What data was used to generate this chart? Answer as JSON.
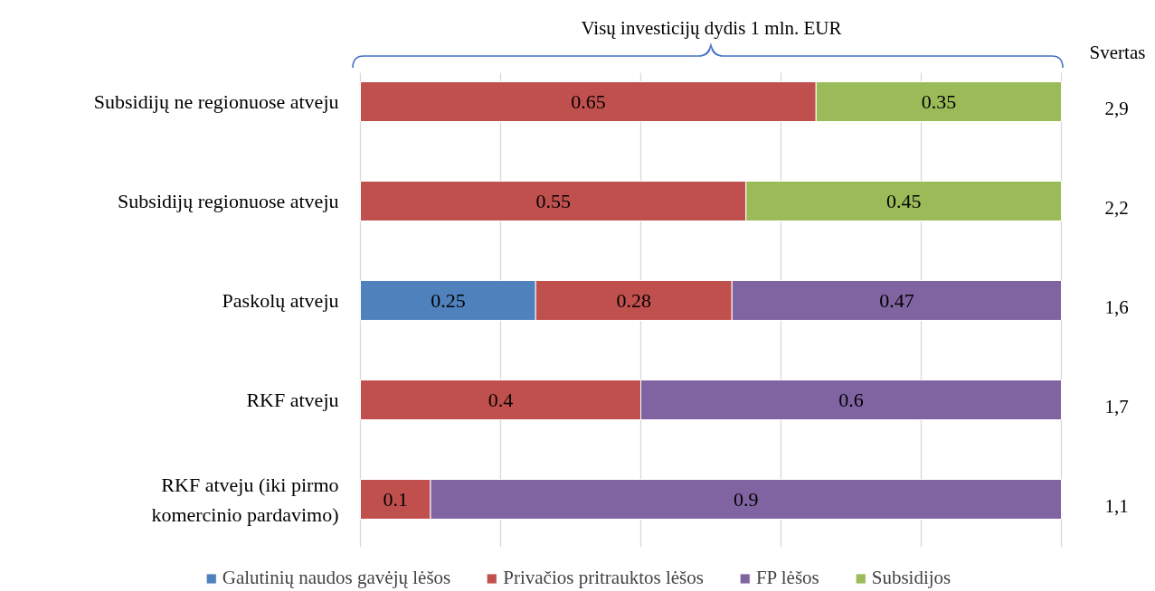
{
  "chart_data": {
    "type": "bar",
    "orientation": "horizontal",
    "stacked": true,
    "categories": [
      "Subsidijų ne regionuose atveju",
      "Subsidijų regionuose atveju",
      "Paskolų atveju",
      "RKF atveju",
      "RKF atveju (iki pirmo komercinio pardavimo)"
    ],
    "series": [
      {
        "name": "Galutinių naudos gavėjų lėšos",
        "color": "#4f81bd",
        "values": [
          null,
          null,
          0.25,
          null,
          null
        ]
      },
      {
        "name": "Privačios pritrauktos lėšos",
        "color": "#c0504d",
        "values": [
          0.65,
          0.55,
          0.28,
          0.4,
          0.1
        ]
      },
      {
        "name": "FP lėšos",
        "color": "#8064a2",
        "values": [
          null,
          null,
          0.47,
          0.6,
          0.9
        ]
      },
      {
        "name": "Subsidijos",
        "color": "#9bbb59",
        "values": [
          0.35,
          0.45,
          null,
          null,
          null
        ]
      }
    ],
    "xlim": [
      0,
      1
    ],
    "xticks": [
      {
        "value": 0,
        "label": null
      },
      {
        "value": 0.2,
        "label": null
      },
      {
        "value": 0.4,
        "label": null
      },
      {
        "value": 0.6,
        "label": null
      },
      {
        "value": 0.8,
        "label": null
      },
      {
        "value": 1,
        "label": null
      }
    ],
    "tick_labels": false,
    "grid": "x",
    "legend": "bottom",
    "data_labels": true,
    "annotations": [
      "Visų investicijų dydis 1 mln. EUR",
      "Svertas",
      "2,9",
      "2,2",
      "1,6",
      "1,7",
      "1,1"
    ]
  }
}
